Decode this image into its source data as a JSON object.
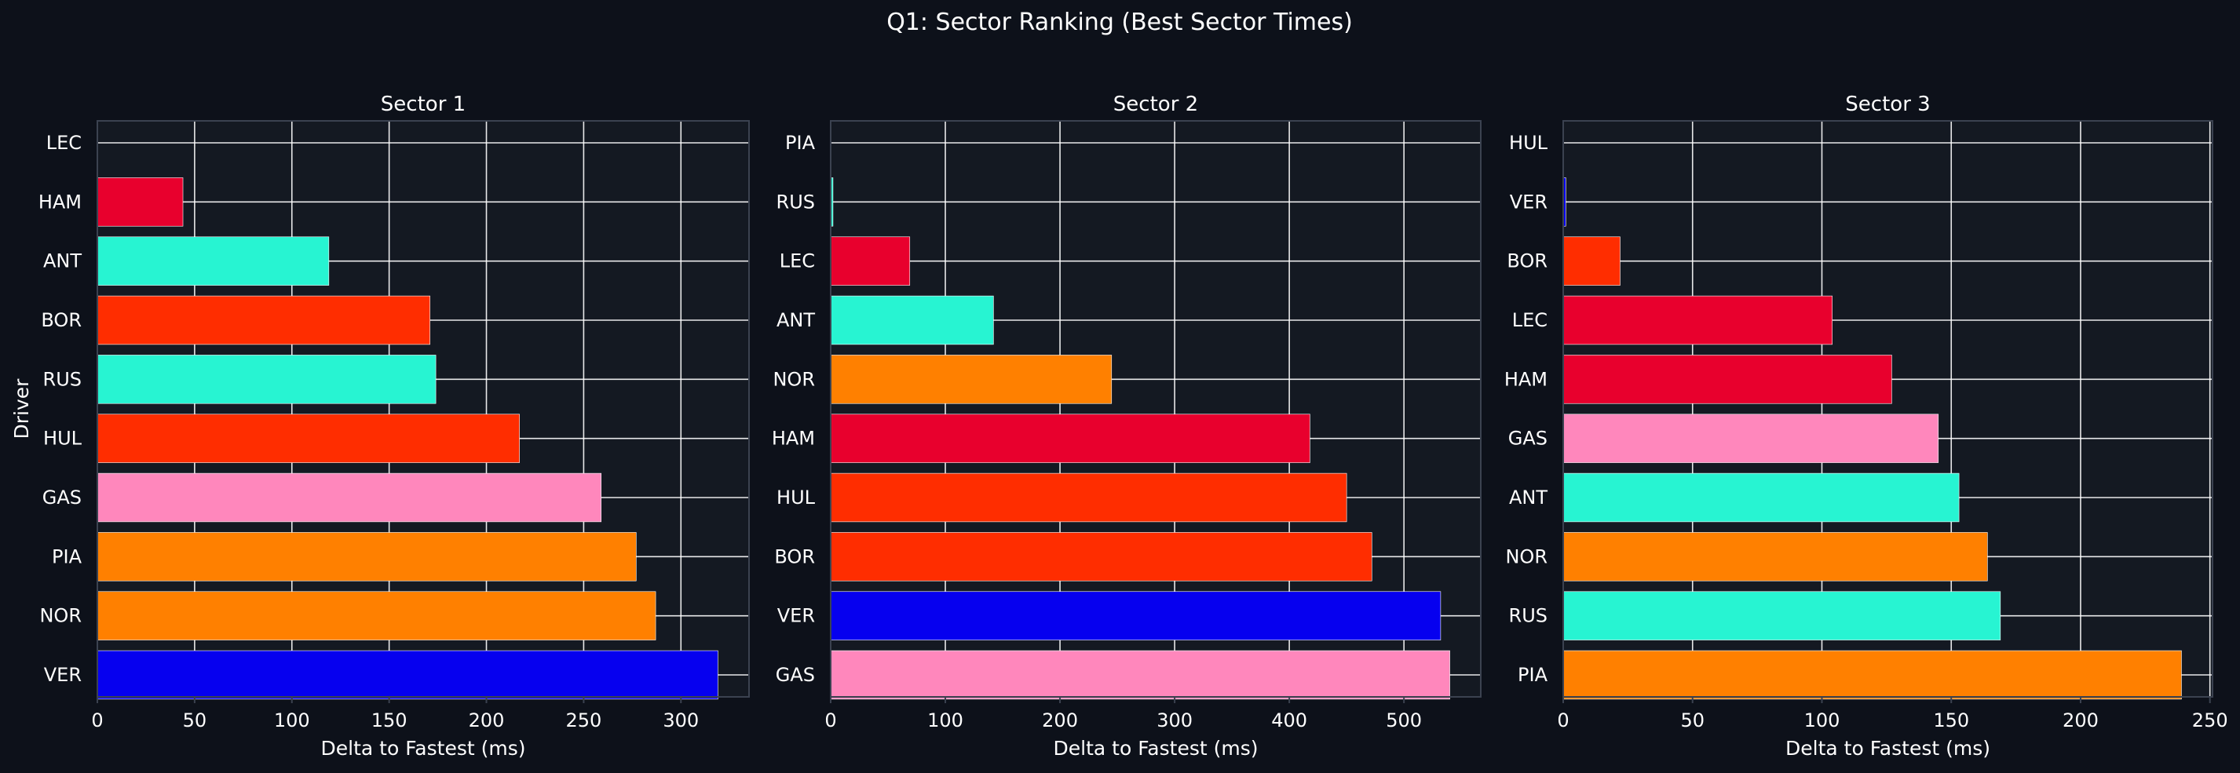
{
  "figure": {
    "title": "Q1: Sector Ranking (Best Sector Times)",
    "background": "#0d111a",
    "panel_background": "#141922",
    "grid_color": "#ffffff",
    "spine_color": "#3b4250",
    "text_color": "#ffffff"
  },
  "chart_data": [
    {
      "type": "bar",
      "orientation": "horizontal",
      "title": "Sector 1",
      "xlabel": "Delta to Fastest (ms)",
      "ylabel": "Driver",
      "xlim": [
        0,
        335
      ],
      "xticks": [
        0,
        50,
        100,
        150,
        200,
        250,
        300
      ],
      "grid": true,
      "categories": [
        "LEC",
        "HAM",
        "ANT",
        "BOR",
        "RUS",
        "HUL",
        "GAS",
        "PIA",
        "NOR",
        "VER"
      ],
      "values": [
        0,
        44,
        119,
        171,
        174,
        217,
        259,
        277,
        287,
        319
      ],
      "colors": [
        "#e8002d",
        "#e8002d",
        "#27f4d2",
        "#ff2d00",
        "#27f4d2",
        "#ff2d00",
        "#ff87bc",
        "#ff8000",
        "#ff8000",
        "#0600ef"
      ]
    },
    {
      "type": "bar",
      "orientation": "horizontal",
      "title": "Sector 2",
      "xlabel": "Delta to Fastest (ms)",
      "ylabel": "",
      "xlim": [
        0,
        567
      ],
      "xticks": [
        0,
        100,
        200,
        300,
        400,
        500
      ],
      "grid": true,
      "categories": [
        "PIA",
        "RUS",
        "LEC",
        "ANT",
        "NOR",
        "HAM",
        "HUL",
        "BOR",
        "VER",
        "GAS"
      ],
      "values": [
        0,
        2,
        69,
        142,
        245,
        418,
        450,
        472,
        532,
        540
      ],
      "colors": [
        "#ff8000",
        "#27f4d2",
        "#e8002d",
        "#27f4d2",
        "#ff8000",
        "#e8002d",
        "#ff2d00",
        "#ff2d00",
        "#0600ef",
        "#ff87bc"
      ]
    },
    {
      "type": "bar",
      "orientation": "horizontal",
      "title": "Sector 3",
      "xlabel": "Delta to Fastest (ms)",
      "ylabel": "",
      "xlim": [
        0,
        251
      ],
      "xticks": [
        0,
        50,
        100,
        150,
        200,
        250
      ],
      "grid": true,
      "categories": [
        "HUL",
        "VER",
        "BOR",
        "LEC",
        "HAM",
        "GAS",
        "ANT",
        "NOR",
        "RUS",
        "PIA"
      ],
      "values": [
        0,
        1,
        22,
        104,
        127,
        145,
        153,
        164,
        169,
        239
      ],
      "colors": [
        "#ff2d00",
        "#0600ef",
        "#ff2d00",
        "#e8002d",
        "#e8002d",
        "#ff87bc",
        "#27f4d2",
        "#ff8000",
        "#27f4d2",
        "#ff8000"
      ]
    }
  ]
}
